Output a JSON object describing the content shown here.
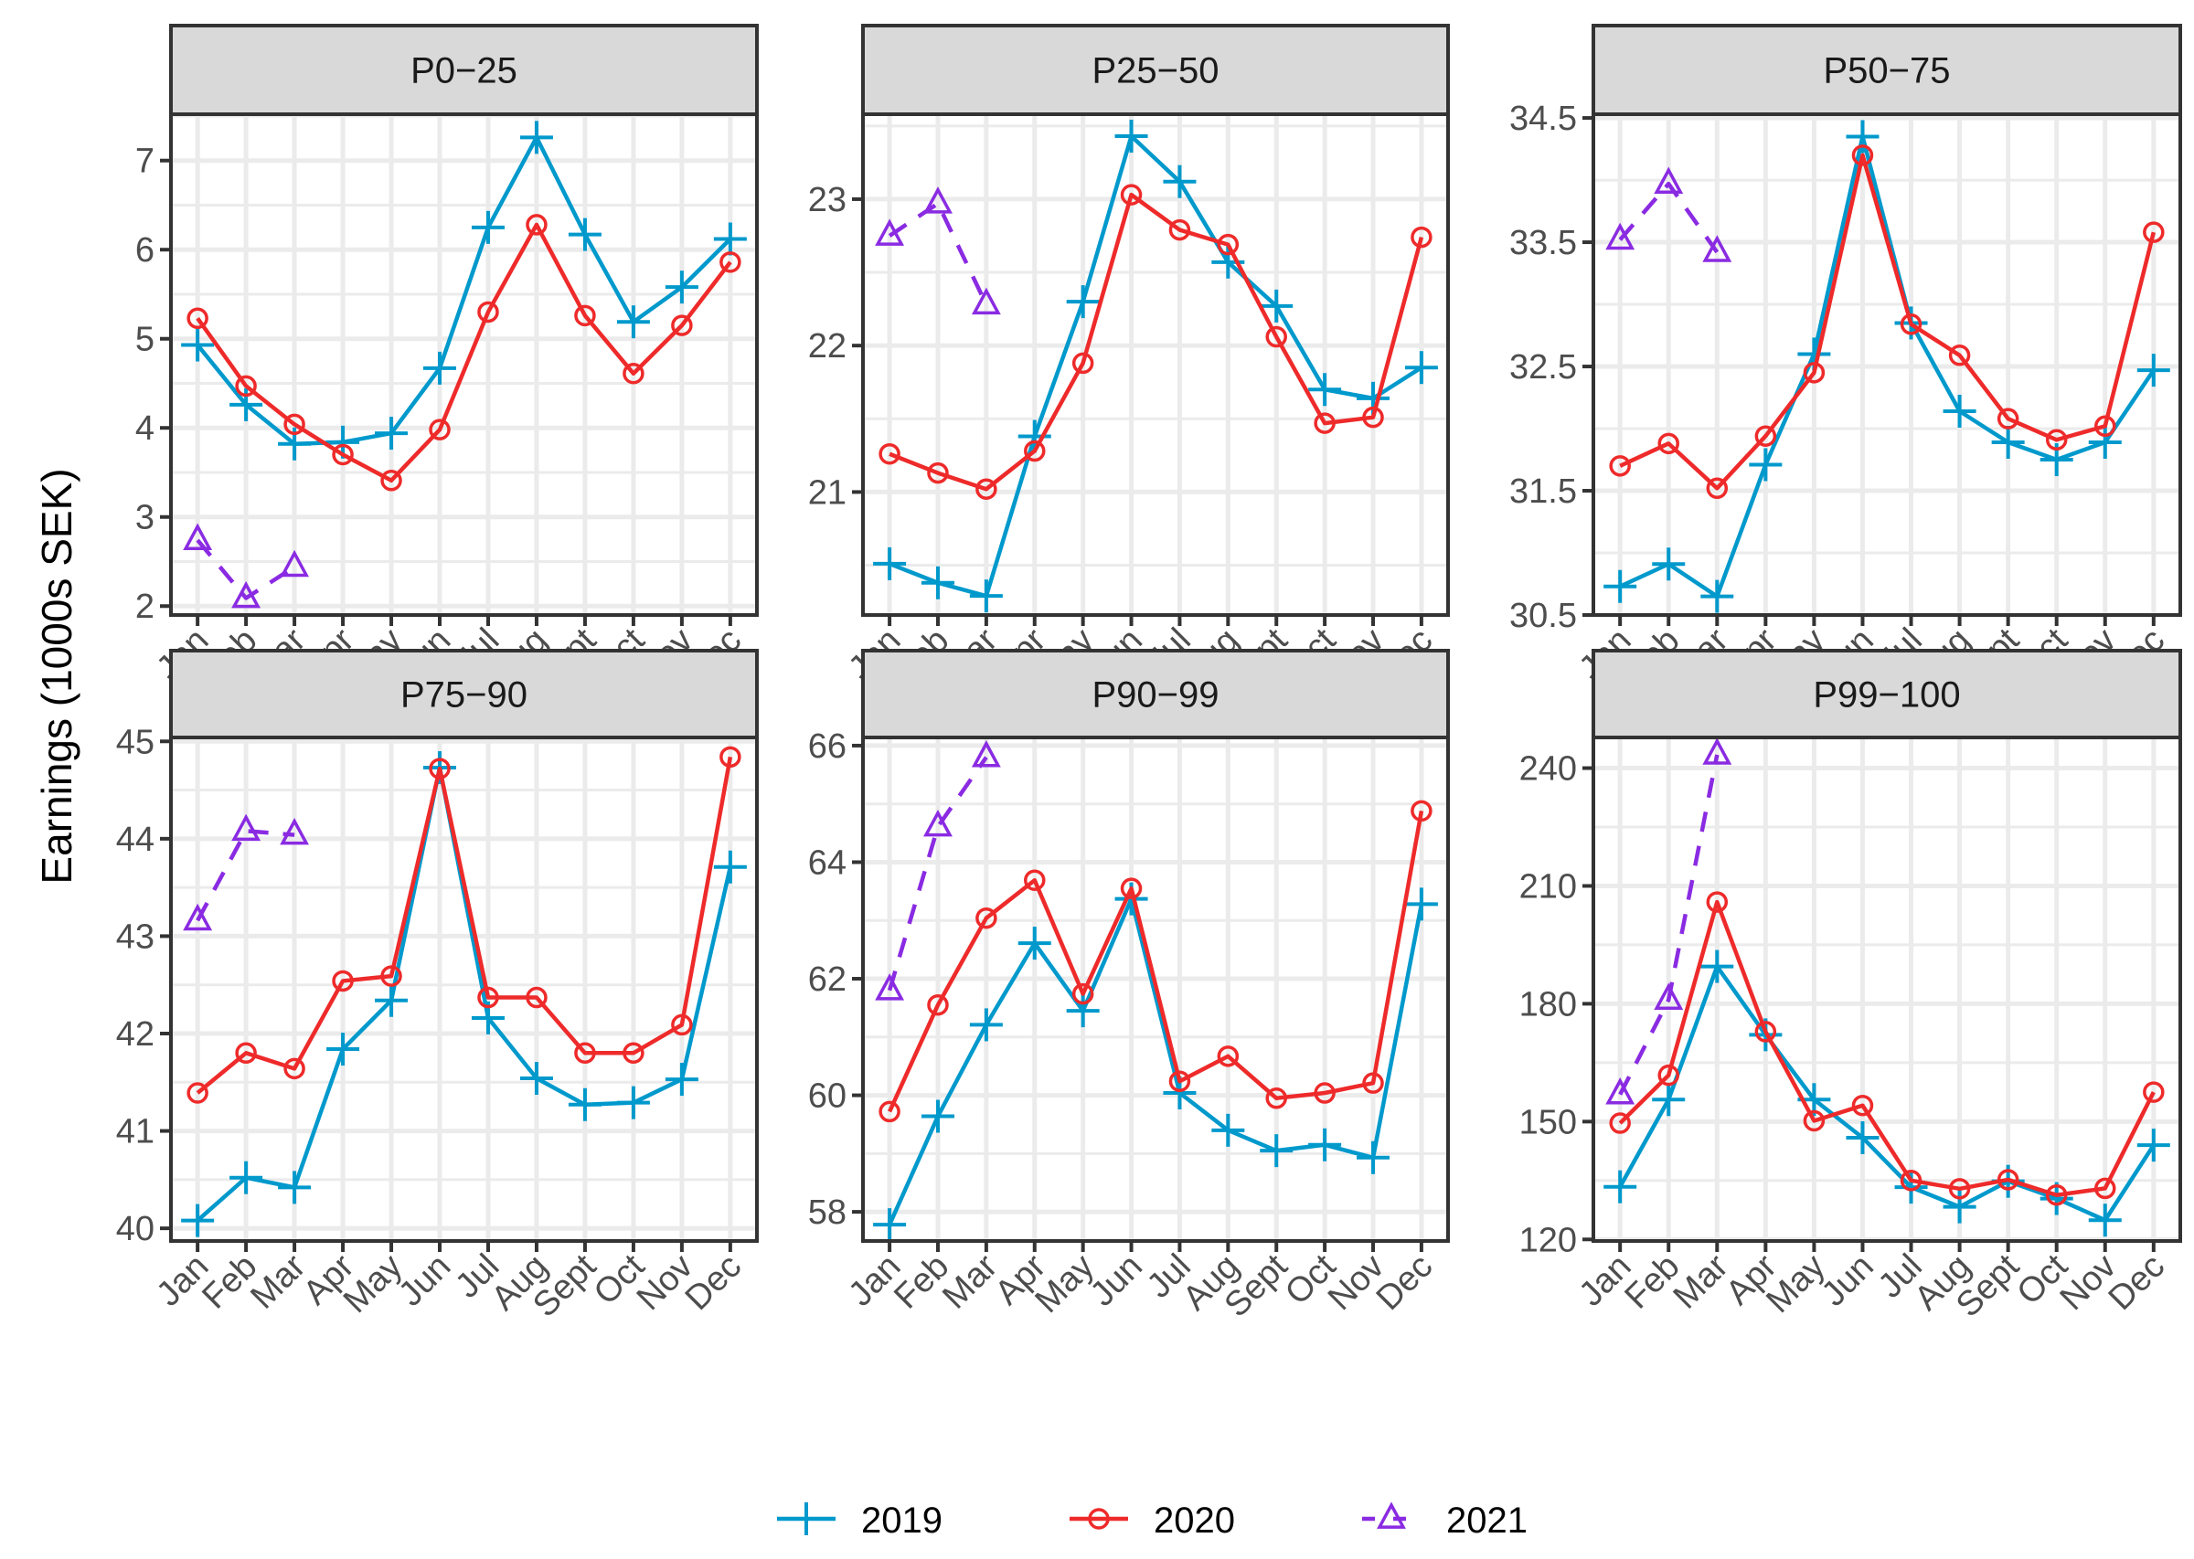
{
  "chart_data": {
    "type": "line",
    "layout": "facet-grid-2x3",
    "ylabel": "Earnings (1000s SEK)",
    "xlabel": "",
    "categories": [
      "Jan",
      "Feb",
      "Mar",
      "Apr",
      "May",
      "Jun",
      "Jul",
      "Aug",
      "Sept",
      "Oct",
      "Nov",
      "Dec"
    ],
    "legend": {
      "position": "bottom",
      "entries": [
        {
          "name": "2019",
          "color": "#0099CC",
          "marker": "plus",
          "linetype": "solid"
        },
        {
          "name": "2020",
          "color": "#EE2A2A",
          "marker": "circle",
          "linetype": "solid"
        },
        {
          "name": "2021",
          "color": "#8A2BE2",
          "marker": "triangle",
          "linetype": "dashed"
        }
      ]
    },
    "grid": true,
    "panels": [
      {
        "title": "P0−25",
        "ylim": [
          1.9,
          7.52
        ],
        "yticks": [
          2,
          3,
          4,
          5,
          6,
          7
        ],
        "ytick_labels": [
          "2",
          "3",
          "4",
          "5",
          "6",
          "7"
        ],
        "series": [
          {
            "name": "2019",
            "values": [
              4.93,
              4.26,
              3.82,
              3.84,
              3.94,
              4.67,
              6.25,
              7.26,
              6.17,
              5.19,
              5.58,
              6.12
            ]
          },
          {
            "name": "2020",
            "values": [
              5.23,
              4.47,
              4.04,
              3.7,
              3.41,
              3.98,
              5.3,
              6.28,
              5.26,
              4.61,
              5.15,
              5.86
            ]
          },
          {
            "name": "2021",
            "values": [
              2.74,
              2.09,
              2.44
            ]
          }
        ]
      },
      {
        "title": "P25−50",
        "ylim": [
          20.16,
          23.58
        ],
        "yticks": [
          21,
          22,
          23
        ],
        "ytick_labels": [
          "21",
          "22",
          "23"
        ],
        "series": [
          {
            "name": "2019",
            "values": [
              20.51,
              20.38,
              20.29,
              21.38,
              22.3,
              23.43,
              23.12,
              22.57,
              22.27,
              21.7,
              21.64,
              21.85
            ]
          },
          {
            "name": "2020",
            "values": [
              21.26,
              21.13,
              21.02,
              21.28,
              21.88,
              23.03,
              22.79,
              22.69,
              22.06,
              21.47,
              21.51,
              22.74
            ]
          },
          {
            "name": "2021",
            "values": [
              22.75,
              22.97,
              22.28
            ]
          }
        ]
      },
      {
        "title": "P50−75",
        "ylim": [
          30.5,
          34.53
        ],
        "yticks": [
          30.5,
          31.5,
          32.5,
          33.5,
          34.5
        ],
        "ytick_labels": [
          "30.5",
          "31.5",
          "32.5",
          "33.5",
          "34.5"
        ],
        "series": [
          {
            "name": "2019",
            "values": [
              30.73,
              30.91,
              30.65,
              31.71,
              32.6,
              34.35,
              32.85,
              32.14,
              31.89,
              31.75,
              31.89,
              32.47
            ]
          },
          {
            "name": "2020",
            "values": [
              31.7,
              31.88,
              31.52,
              31.94,
              32.45,
              34.2,
              32.84,
              32.59,
              32.08,
              31.91,
              32.02,
              33.58
            ]
          },
          {
            "name": "2021",
            "values": [
              33.52,
              33.97,
              33.42
            ]
          }
        ]
      },
      {
        "title": "P75−90",
        "ylim": [
          39.87,
          45.04
        ],
        "yticks": [
          40,
          41,
          42,
          43,
          44,
          45
        ],
        "ytick_labels": [
          "40",
          "41",
          "42",
          "43",
          "44",
          "45"
        ],
        "series": [
          {
            "name": "2019",
            "values": [
              40.08,
              40.52,
              40.42,
              41.84,
              42.34,
              44.73,
              42.16,
              41.54,
              41.27,
              41.29,
              41.53,
              43.71
            ]
          },
          {
            "name": "2020",
            "values": [
              41.39,
              41.8,
              41.64,
              42.54,
              42.59,
              44.72,
              42.37,
              42.37,
              41.8,
              41.8,
              42.09,
              44.84
            ]
          },
          {
            "name": "2021",
            "values": [
              43.16,
              44.08,
              44.04
            ]
          }
        ]
      },
      {
        "title": "P90−99",
        "ylim": [
          57.5,
          66.14
        ],
        "yticks": [
          58,
          60,
          62,
          64,
          66
        ],
        "ytick_labels": [
          "58",
          "60",
          "62",
          "64",
          "66"
        ],
        "series": [
          {
            "name": "2019",
            "values": [
              57.78,
              59.64,
              61.21,
              62.61,
              61.45,
              63.37,
              60.04,
              59.4,
              59.05,
              59.15,
              58.93,
              63.28
            ]
          },
          {
            "name": "2020",
            "values": [
              59.72,
              61.55,
              63.04,
              63.69,
              61.74,
              63.55,
              60.24,
              60.67,
              59.95,
              60.04,
              60.21,
              64.88
            ]
          },
          {
            "name": "2021",
            "values": [
              61.8,
              64.61,
              65.8
            ]
          }
        ]
      },
      {
        "title": "P99−100",
        "ylim": [
          119.6,
          247.8
        ],
        "yticks": [
          120,
          150,
          180,
          210,
          240
        ],
        "ytick_labels": [
          "120",
          "150",
          "180",
          "210",
          "240"
        ],
        "series": [
          {
            "name": "2019",
            "values": [
              133.4,
              155.6,
              189.5,
              172.1,
              155.6,
              145.9,
              133.3,
              128.3,
              134.8,
              130.4,
              124.9,
              144.0
            ]
          },
          {
            "name": "2020",
            "values": [
              149.6,
              161.8,
              205.9,
              172.9,
              150.2,
              154.1,
              135.0,
              132.9,
              135.2,
              131.3,
              133.0,
              157.5
            ]
          },
          {
            "name": "2021",
            "values": [
              156.9,
              181.0,
              243.4
            ]
          }
        ]
      }
    ]
  }
}
